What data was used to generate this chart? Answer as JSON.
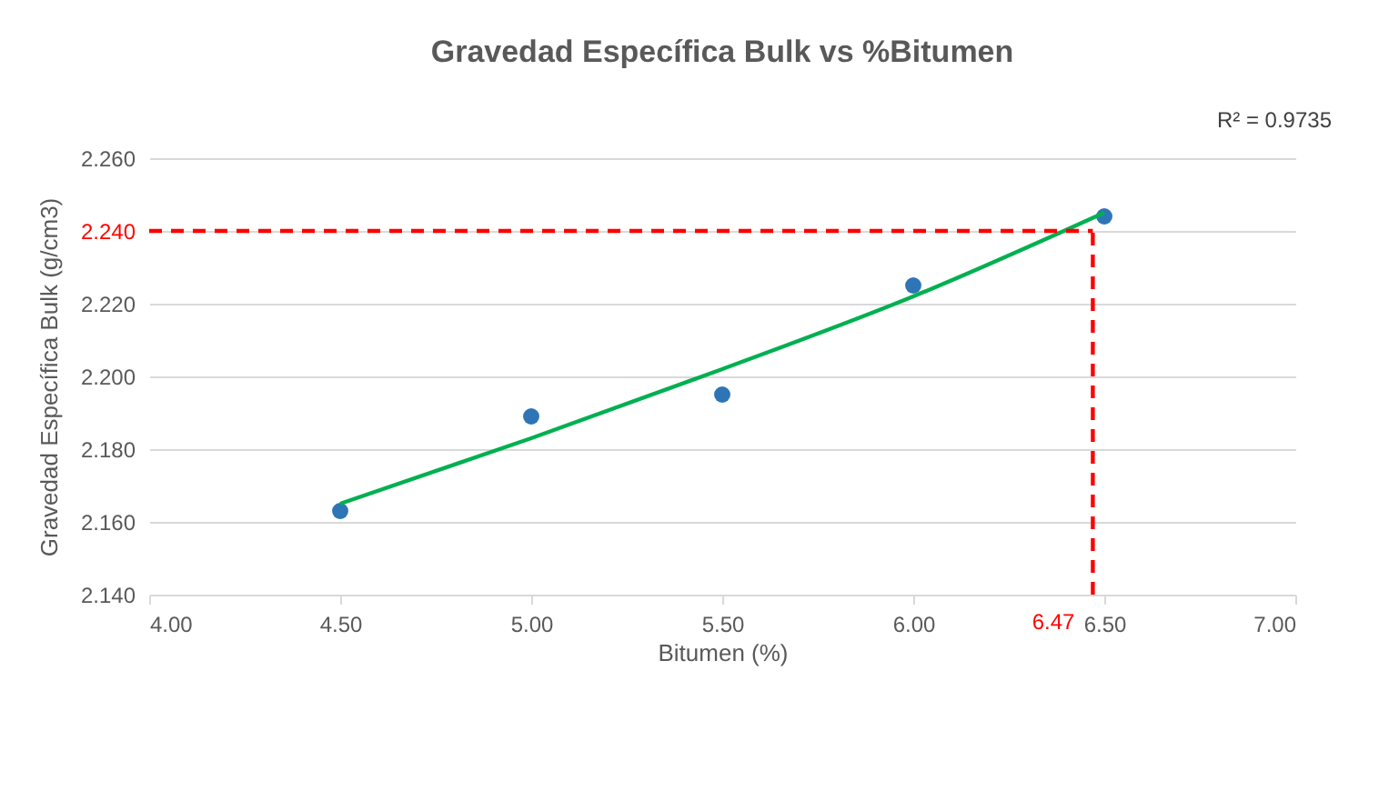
{
  "chart_data": {
    "type": "scatter",
    "title": "Gravedad Específica Bulk vs %Bitumen",
    "xlabel": "Bitumen (%)",
    "ylabel": "Gravedad  Específica Bulk (g/cm3)",
    "x": [
      4.5,
      5.0,
      5.5,
      6.0,
      6.5
    ],
    "series": [
      {
        "color": "#2e75b6",
        "marker": "circle",
        "values": [
          2.163,
          2.189,
          2.195,
          2.225,
          2.244
        ]
      },
      {
        "type": "line",
        "color": "#00b050",
        "x": [
          4.5,
          5.0,
          5.5,
          6.0,
          6.5
        ],
        "values": [
          2.165,
          2.183,
          2.202,
          2.222,
          2.245
        ]
      }
    ],
    "xlim": [
      4,
      7
    ],
    "xticks": [
      {
        "value": 4,
        "label": "4.00"
      },
      {
        "value": 4.5,
        "label": "4.50"
      },
      {
        "value": 5,
        "label": "5.00"
      },
      {
        "value": 5.5,
        "label": "5.50"
      },
      {
        "value": 6,
        "label": "6.00"
      },
      {
        "value": 6.5,
        "label": "6.50"
      },
      {
        "value": 7,
        "label": "7.00"
      }
    ],
    "ylim": [
      2.14,
      2.26
    ],
    "yticks": [
      {
        "value": 2.14,
        "label": "2.140"
      },
      {
        "value": 2.16,
        "label": "2.160"
      },
      {
        "value": 2.18,
        "label": "2.180"
      },
      {
        "value": 2.2,
        "label": "2.200"
      },
      {
        "value": 2.22,
        "label": "2.220"
      },
      {
        "value": 2.24,
        "label": "2.240"
      },
      {
        "value": 2.26,
        "label": "2.260"
      }
    ],
    "grid": "y",
    "ref_lines": [
      {
        "axis": "y",
        "value": 2.24,
        "color": "#ff0000",
        "line_style": "dashed"
      },
      {
        "axis": "x",
        "value": 6.47,
        "label": "6.47",
        "color": "#ff0000",
        "line_style": "dashed"
      }
    ],
    "annotations": [
      "R² = 0.9735"
    ]
  }
}
